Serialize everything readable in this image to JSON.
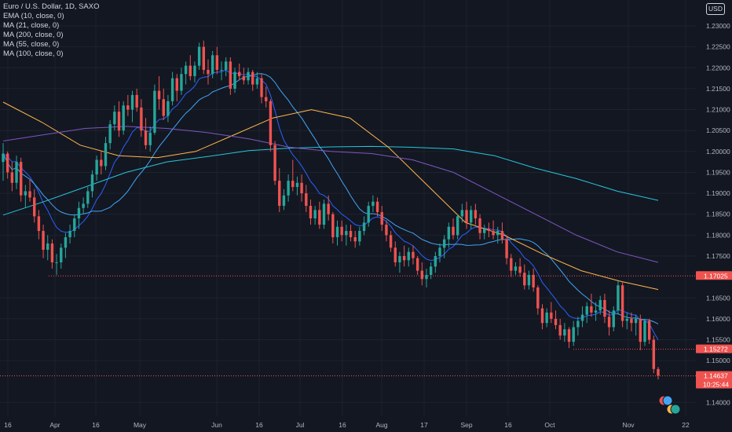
{
  "legend": {
    "title": "Euro / U.S. Dollar, 1D, SAXO",
    "indicators": [
      "EMA (10, close, 0)",
      "MA (21, close, 0)",
      "MA (200, close, 0)",
      "MA (55, close, 0)",
      "MA (100, close, 0)"
    ]
  },
  "currency_button": "USD",
  "colors": {
    "background": "#131722",
    "grid": "#1e222d",
    "up": "#26a69a",
    "down": "#ef5350",
    "text": "#b2b5be",
    "ema10": "#2962ff",
    "ma21": "#42a5f5",
    "ma200": "#26c6da",
    "ma55": "#ffb74d",
    "ma100": "#7e57c2"
  },
  "chart_data": {
    "type": "candlestick",
    "symbol": "Euro / U.S. Dollar",
    "interval": "1D",
    "source": "SAXO",
    "price_axis": {
      "ticks": [
        "1.23000",
        "1.22500",
        "1.22000",
        "1.21500",
        "1.21000",
        "1.20500",
        "1.20000",
        "1.19500",
        "1.19000",
        "1.18500",
        "1.18000",
        "1.17500",
        "1.16500",
        "1.16000",
        "1.15500",
        "1.15000",
        "1.14000"
      ],
      "range": [
        1.1367,
        1.2362
      ]
    },
    "time_axis": {
      "ticks": [
        "16",
        "Apr",
        "16",
        "May",
        "Jun",
        "16",
        "Jul",
        "16",
        "Aug",
        "17",
        "Sep",
        "16",
        "Oct",
        "Nov",
        "22"
      ]
    },
    "price_labels": [
      {
        "value": "1.17025",
        "color": "#ef5350"
      },
      {
        "value": "1.15272",
        "color": "#ef5350"
      },
      {
        "value": "1.14637",
        "color": "#ef5350"
      }
    ],
    "countdown": "10:25:44",
    "horizontal_levels": [
      1.17025,
      1.15272,
      1.14637
    ],
    "ohlc": [
      [
        1.1975,
        1.202,
        1.193,
        1.1995
      ],
      [
        1.1995,
        1.2,
        1.1935,
        1.195
      ],
      [
        1.195,
        1.1975,
        1.1905,
        1.1925
      ],
      [
        1.1925,
        1.199,
        1.191,
        1.1975
      ],
      [
        1.1975,
        1.1985,
        1.188,
        1.1895
      ],
      [
        1.1895,
        1.192,
        1.1865,
        1.1905
      ],
      [
        1.1905,
        1.1935,
        1.188,
        1.189
      ],
      [
        1.189,
        1.191,
        1.183,
        1.1845
      ],
      [
        1.1845,
        1.186,
        1.179,
        1.181
      ],
      [
        1.181,
        1.1825,
        1.1745,
        1.1765
      ],
      [
        1.1765,
        1.18,
        1.174,
        1.178
      ],
      [
        1.178,
        1.179,
        1.172,
        1.1735
      ],
      [
        1.1735,
        1.1755,
        1.1705,
        1.1735
      ],
      [
        1.1735,
        1.178,
        1.172,
        1.177
      ],
      [
        1.177,
        1.1805,
        1.1745,
        1.1795
      ],
      [
        1.1795,
        1.1825,
        1.178,
        1.181
      ],
      [
        1.181,
        1.185,
        1.1795,
        1.184
      ],
      [
        1.184,
        1.188,
        1.1815,
        1.1865
      ],
      [
        1.1865,
        1.189,
        1.185,
        1.1875
      ],
      [
        1.1875,
        1.1915,
        1.1865,
        1.1905
      ],
      [
        1.1905,
        1.1955,
        1.189,
        1.1945
      ],
      [
        1.1945,
        1.199,
        1.193,
        1.198
      ],
      [
        1.198,
        1.2,
        1.1945,
        1.1965
      ],
      [
        1.1965,
        1.2035,
        1.1955,
        1.202
      ],
      [
        1.202,
        1.2075,
        1.2005,
        1.2065
      ],
      [
        1.2065,
        1.211,
        1.205,
        1.2095
      ],
      [
        1.2095,
        1.212,
        1.2035,
        1.205
      ],
      [
        1.205,
        1.212,
        1.204,
        1.211
      ],
      [
        1.211,
        1.2135,
        1.2085,
        1.21
      ],
      [
        1.21,
        1.2145,
        1.207,
        1.2135
      ],
      [
        1.2135,
        1.215,
        1.2095,
        1.2105
      ],
      [
        1.2105,
        1.2125,
        1.2035,
        1.205
      ],
      [
        1.205,
        1.208,
        1.2005,
        1.2015
      ],
      [
        1.2015,
        1.206,
        1.2,
        1.2045
      ],
      [
        1.2045,
        1.216,
        1.204,
        1.2145
      ],
      [
        1.2145,
        1.218,
        1.21,
        1.2125
      ],
      [
        1.2125,
        1.215,
        1.2075,
        1.2085
      ],
      [
        1.2085,
        1.2135,
        1.207,
        1.212
      ],
      [
        1.212,
        1.219,
        1.211,
        1.2175
      ],
      [
        1.2175,
        1.2185,
        1.212,
        1.2145
      ],
      [
        1.2145,
        1.22,
        1.2135,
        1.2185
      ],
      [
        1.2185,
        1.2215,
        1.216,
        1.2205
      ],
      [
        1.2205,
        1.223,
        1.217,
        1.218
      ],
      [
        1.218,
        1.2215,
        1.2165,
        1.2205
      ],
      [
        1.2205,
        1.226,
        1.2195,
        1.225
      ],
      [
        1.225,
        1.2265,
        1.2185,
        1.2195
      ],
      [
        1.2195,
        1.222,
        1.216,
        1.2185
      ],
      [
        1.2185,
        1.224,
        1.2175,
        1.223
      ],
      [
        1.223,
        1.225,
        1.2185,
        1.2195
      ],
      [
        1.2195,
        1.2215,
        1.217,
        1.2195
      ],
      [
        1.2195,
        1.2225,
        1.218,
        1.2215
      ],
      [
        1.2215,
        1.2225,
        1.2135,
        1.215
      ],
      [
        1.215,
        1.22,
        1.214,
        1.219
      ],
      [
        1.219,
        1.221,
        1.217,
        1.218
      ],
      [
        1.218,
        1.22,
        1.216,
        1.217
      ],
      [
        1.217,
        1.22,
        1.216,
        1.219
      ],
      [
        1.219,
        1.2195,
        1.2145,
        1.216
      ],
      [
        1.216,
        1.219,
        1.215,
        1.2175
      ],
      [
        1.2175,
        1.2185,
        1.2115,
        1.213
      ],
      [
        1.213,
        1.2155,
        1.2105,
        1.212
      ],
      [
        1.212,
        1.2125,
        1.2,
        1.2015
      ],
      [
        1.2015,
        1.2025,
        1.192,
        1.193
      ],
      [
        1.193,
        1.196,
        1.1855,
        1.187
      ],
      [
        1.187,
        1.191,
        1.186,
        1.1895
      ],
      [
        1.1895,
        1.1945,
        1.188,
        1.193
      ],
      [
        1.193,
        1.198,
        1.1905,
        1.1915
      ],
      [
        1.1915,
        1.194,
        1.1895,
        1.1925
      ],
      [
        1.1925,
        1.1945,
        1.188,
        1.19
      ],
      [
        1.19,
        1.192,
        1.1855,
        1.187
      ],
      [
        1.187,
        1.1885,
        1.1825,
        1.184
      ],
      [
        1.184,
        1.187,
        1.1825,
        1.186
      ],
      [
        1.186,
        1.188,
        1.1815,
        1.1825
      ],
      [
        1.1825,
        1.1885,
        1.1815,
        1.1875
      ],
      [
        1.1875,
        1.1895,
        1.1835,
        1.185
      ],
      [
        1.185,
        1.1855,
        1.178,
        1.1795
      ],
      [
        1.1795,
        1.1835,
        1.1775,
        1.182
      ],
      [
        1.182,
        1.1835,
        1.1785,
        1.18
      ],
      [
        1.18,
        1.1825,
        1.1775,
        1.181
      ],
      [
        1.181,
        1.1825,
        1.1785,
        1.1795
      ],
      [
        1.1795,
        1.181,
        1.177,
        1.1785
      ],
      [
        1.1785,
        1.182,
        1.1775,
        1.181
      ],
      [
        1.181,
        1.1845,
        1.18,
        1.183
      ],
      [
        1.183,
        1.188,
        1.182,
        1.187
      ],
      [
        1.187,
        1.1895,
        1.1855,
        1.188
      ],
      [
        1.188,
        1.189,
        1.1845,
        1.1855
      ],
      [
        1.1855,
        1.187,
        1.181,
        1.1825
      ],
      [
        1.1825,
        1.1835,
        1.1785,
        1.18
      ],
      [
        1.18,
        1.181,
        1.176,
        1.177
      ],
      [
        1.177,
        1.1785,
        1.1725,
        1.1735
      ],
      [
        1.1735,
        1.176,
        1.171,
        1.175
      ],
      [
        1.175,
        1.1775,
        1.1725,
        1.174
      ],
      [
        1.174,
        1.177,
        1.1725,
        1.176
      ],
      [
        1.176,
        1.1775,
        1.173,
        1.1745
      ],
      [
        1.1745,
        1.175,
        1.1705,
        1.1715
      ],
      [
        1.1715,
        1.1735,
        1.168,
        1.1695
      ],
      [
        1.1695,
        1.172,
        1.1675,
        1.1705
      ],
      [
        1.1705,
        1.1735,
        1.1695,
        1.1725
      ],
      [
        1.1725,
        1.176,
        1.171,
        1.175
      ],
      [
        1.175,
        1.178,
        1.1735,
        1.177
      ],
      [
        1.177,
        1.18,
        1.1745,
        1.179
      ],
      [
        1.179,
        1.183,
        1.177,
        1.182
      ],
      [
        1.182,
        1.184,
        1.179,
        1.18
      ],
      [
        1.18,
        1.185,
        1.179,
        1.1845
      ],
      [
        1.1845,
        1.1875,
        1.183,
        1.186
      ],
      [
        1.186,
        1.188,
        1.1815,
        1.183
      ],
      [
        1.183,
        1.187,
        1.1815,
        1.186
      ],
      [
        1.186,
        1.1875,
        1.1825,
        1.184
      ],
      [
        1.184,
        1.185,
        1.179,
        1.1805
      ],
      [
        1.1805,
        1.1825,
        1.179,
        1.1815
      ],
      [
        1.1815,
        1.183,
        1.1795,
        1.181
      ],
      [
        1.181,
        1.1835,
        1.179,
        1.18
      ],
      [
        1.18,
        1.182,
        1.178,
        1.181
      ],
      [
        1.181,
        1.183,
        1.178,
        1.179
      ],
      [
        1.179,
        1.18,
        1.173,
        1.1745
      ],
      [
        1.1745,
        1.1755,
        1.17,
        1.1715
      ],
      [
        1.1715,
        1.1735,
        1.1705,
        1.1725
      ],
      [
        1.1725,
        1.1745,
        1.17,
        1.171
      ],
      [
        1.171,
        1.173,
        1.167,
        1.168
      ],
      [
        1.168,
        1.1715,
        1.167,
        1.1705
      ],
      [
        1.1705,
        1.172,
        1.1665,
        1.1675
      ],
      [
        1.1675,
        1.168,
        1.161,
        1.1625
      ],
      [
        1.1625,
        1.1635,
        1.1575,
        1.159
      ],
      [
        1.159,
        1.1625,
        1.158,
        1.1615
      ],
      [
        1.1615,
        1.164,
        1.159,
        1.16
      ],
      [
        1.16,
        1.162,
        1.1575,
        1.1585
      ],
      [
        1.1585,
        1.16,
        1.155,
        1.156
      ],
      [
        1.156,
        1.159,
        1.1545,
        1.1575
      ],
      [
        1.1575,
        1.158,
        1.153,
        1.1545
      ],
      [
        1.1545,
        1.1595,
        1.1535,
        1.158
      ],
      [
        1.158,
        1.1605,
        1.156,
        1.1595
      ],
      [
        1.1595,
        1.163,
        1.158,
        1.161
      ],
      [
        1.161,
        1.164,
        1.159,
        1.163
      ],
      [
        1.163,
        1.166,
        1.1605,
        1.1615
      ],
      [
        1.1615,
        1.164,
        1.1595,
        1.162
      ],
      [
        1.162,
        1.1655,
        1.161,
        1.1645
      ],
      [
        1.1645,
        1.166,
        1.159,
        1.1605
      ],
      [
        1.1605,
        1.162,
        1.156,
        1.158
      ],
      [
        1.158,
        1.163,
        1.157,
        1.162
      ],
      [
        1.162,
        1.169,
        1.161,
        1.168
      ],
      [
        1.168,
        1.169,
        1.158,
        1.1595
      ],
      [
        1.1595,
        1.1615,
        1.1575,
        1.16
      ],
      [
        1.16,
        1.1615,
        1.157,
        1.159
      ],
      [
        1.159,
        1.161,
        1.156,
        1.16
      ],
      [
        1.16,
        1.161,
        1.1525,
        1.1545
      ],
      [
        1.1545,
        1.16,
        1.1535,
        1.1595
      ],
      [
        1.1595,
        1.16,
        1.154,
        1.155
      ],
      [
        1.155,
        1.156,
        1.147,
        1.148
      ],
      [
        1.148,
        1.1485,
        1.1455,
        1.1464
      ]
    ],
    "series": [
      {
        "name": "EMA (10, close, 0)",
        "color": "#2962ff",
        "period": 10,
        "kind": "ema"
      },
      {
        "name": "MA (21, close, 0)",
        "color": "#42a5f5",
        "period": 21,
        "kind": "sma"
      },
      {
        "name": "MA (200, close, 0)",
        "color": "#26c6da",
        "points": [
          1.1848,
          1.188,
          1.1915,
          1.195,
          1.1975,
          1.1988,
          1.2002,
          1.2008,
          1.2011,
          1.2012,
          1.201,
          1.2006,
          1.199,
          1.196,
          1.1935,
          1.1905,
          1.1883
        ]
      },
      {
        "name": "MA (55, close, 0)",
        "color": "#ffb74d",
        "points": [
          1.2118,
          1.207,
          1.2015,
          1.199,
          1.1985,
          1.2,
          1.204,
          1.208,
          1.21,
          1.208,
          1.201,
          1.192,
          1.183,
          1.18,
          1.1755,
          1.1715,
          1.169,
          1.167
        ]
      },
      {
        "name": "MA (100, close, 0)",
        "color": "#7e57c2",
        "points": [
          1.2025,
          1.204,
          1.2055,
          1.206,
          1.2055,
          1.2045,
          1.203,
          1.201,
          1.2,
          1.1995,
          1.198,
          1.195,
          1.19,
          1.185,
          1.18,
          1.176,
          1.1735
        ]
      }
    ]
  }
}
